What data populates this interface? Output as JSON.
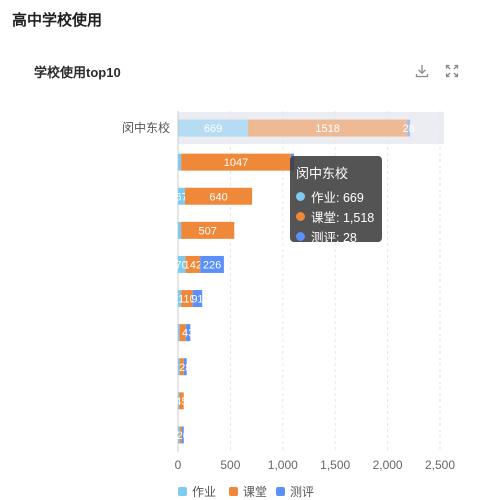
{
  "page": {
    "title": "高中学校使用"
  },
  "card": {
    "title": "学校使用top10",
    "download_icon": "download-icon",
    "fullscreen_icon": "fullscreen-icon"
  },
  "colors": {
    "series": [
      "#7ecbf2",
      "#f0883a",
      "#5b8ff9"
    ],
    "highlight_bg": "#ececf3"
  },
  "tooltip": {
    "title": "闵中东校",
    "rows": [
      {
        "label": "作业: 669"
      },
      {
        "label": "课堂: 1,518"
      },
      {
        "label": "测评: 28"
      }
    ]
  },
  "chart_data": {
    "type": "bar",
    "orientation": "horizontal",
    "stacked": true,
    "categories": [
      "闵中东校",
      "",
      "",
      "",
      "",
      "",
      "",
      "",
      "",
      ""
    ],
    "series": [
      {
        "name": "作业",
        "values": [
          669,
          30,
          67,
          30,
          70,
          30,
          15,
          15,
          10,
          15
        ]
      },
      {
        "name": "课堂",
        "values": [
          1518,
          1047,
          640,
          507,
          142,
          110,
          60,
          40,
          45,
          20
        ]
      },
      {
        "name": "测评",
        "values": [
          28,
          30,
          0,
          0,
          226,
          91,
          43,
          28,
          0,
          20
        ]
      }
    ],
    "data_labels": [
      [
        "669",
        "1518",
        "28"
      ],
      [
        "",
        "1047",
        ""
      ],
      [
        "67",
        "640",
        ""
      ],
      [
        "",
        "507",
        ""
      ],
      [
        "70",
        "142",
        "226"
      ],
      [
        "",
        "110",
        "91"
      ],
      [
        "",
        "",
        "43"
      ],
      [
        "",
        "",
        "28"
      ],
      [
        "",
        "45",
        ""
      ],
      [
        "",
        "",
        "20"
      ]
    ],
    "x_ticks": [
      "0",
      "500",
      "1,000",
      "1,500",
      "2,000",
      "2,500"
    ],
    "xlim": [
      0,
      2500
    ],
    "grid": "vertical",
    "highlighted_category": "闵中东校",
    "legend": "bottom"
  }
}
